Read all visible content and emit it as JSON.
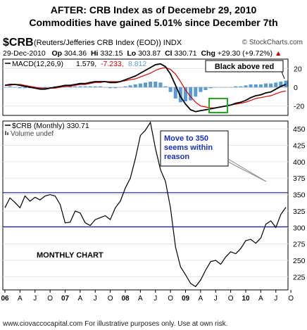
{
  "header": {
    "title_line1": "AFTER:  CRB Index as of Decemebr 29, 2010",
    "title_line2": "Commodities have gained 5.01% since December 7th"
  },
  "quote": {
    "symbol": "$CRB",
    "description": "(Reuters/Jefferies CRB Index (EOD))  INDX",
    "source": "© StockCharts.com",
    "date": "29-Dec-2010",
    "open_label": "Op",
    "open": "304.36",
    "high_label": "Hi",
    "high": "332.15",
    "low_label": "Lo",
    "low": "303.87",
    "close_label": "Cl",
    "close": "330.71",
    "change_label": "Chg",
    "change": "+29.30 (+9.72%)",
    "change_arrow": "▲"
  },
  "footer": {
    "text": "www.ciovaccocapital.com    For illustrative purposes only.   Use at own risk."
  },
  "chart_data": [
    {
      "type": "line",
      "panel": "MACD",
      "legend": {
        "indicator": "MACD(12,26,9)",
        "macd": "1.579,",
        "signal": "-7.233,",
        "histogram": "8.812"
      },
      "annotation": "Black above red",
      "y_ticks": [
        20,
        0,
        -20
      ],
      "ylim": [
        -30,
        30
      ],
      "colors": {
        "macd": "#000000",
        "signal": "#dd0000",
        "histogram": "#5b9bd5",
        "box": "#22aa22"
      },
      "series": [
        {
          "name": "MACD",
          "values": [
            2,
            3,
            3,
            2,
            1,
            0,
            -1,
            -2,
            -2,
            -1,
            0,
            1,
            2,
            2,
            3,
            4,
            4,
            5,
            6,
            6,
            6,
            5,
            5,
            6,
            8,
            10,
            12,
            15,
            18,
            21,
            24,
            25,
            22,
            14,
            2,
            -10,
            -18,
            -24,
            -26,
            -25,
            -24,
            -23,
            -22,
            -21,
            -20,
            -19,
            -17,
            -16,
            -14,
            -11,
            -9,
            -8,
            -6,
            -5,
            -2,
            1,
            3
          ]
        },
        {
          "name": "Signal",
          "values": [
            2,
            2,
            3,
            3,
            2,
            1,
            0,
            -1,
            -1,
            -1,
            -1,
            0,
            1,
            1,
            2,
            3,
            3,
            4,
            5,
            5,
            6,
            6,
            6,
            6,
            7,
            8,
            9,
            11,
            13,
            15,
            18,
            20,
            21,
            19,
            14,
            6,
            -3,
            -10,
            -16,
            -20,
            -21,
            -22,
            -22,
            -21,
            -20,
            -19,
            -18,
            -17,
            -16,
            -14,
            -12,
            -11,
            -10,
            -9,
            -7,
            -5,
            -4
          ]
        }
      ]
    },
    {
      "type": "line",
      "panel": "price",
      "legend": {
        "series": "$CRB (Monthly) 330.71",
        "volume": "Volume undef"
      },
      "annotation_main": "MONTHLY CHART",
      "annotation_target": "Move to 350\nseems within\nreason",
      "y_ticks": [
        450,
        425,
        400,
        375,
        350,
        325,
        300,
        275,
        250,
        225
      ],
      "ylim": [
        205,
        462
      ],
      "reference_lines": [
        353,
        301
      ],
      "x_labels": [
        "06",
        "A",
        "J",
        "O",
        "07",
        "A",
        "J",
        "O",
        "08",
        "A",
        "J",
        "O",
        "09",
        "A",
        "J",
        "O",
        "10",
        "A",
        "J",
        "O"
      ],
      "series": [
        {
          "name": "$CRB (Monthly)",
          "values": [
            330,
            345,
            338,
            330,
            348,
            340,
            346,
            342,
            348,
            350,
            348,
            335,
            307,
            308,
            325,
            322,
            307,
            303,
            312,
            315,
            318,
            312,
            330,
            340,
            360,
            375,
            405,
            440,
            448,
            460,
            420,
            388,
            370,
            330,
            270,
            240,
            228,
            215,
            210,
            220,
            235,
            248,
            250,
            244,
            255,
            263,
            260,
            268,
            280,
            282,
            276,
            284,
            305,
            310,
            300,
            320,
            330.71
          ]
        }
      ]
    }
  ]
}
